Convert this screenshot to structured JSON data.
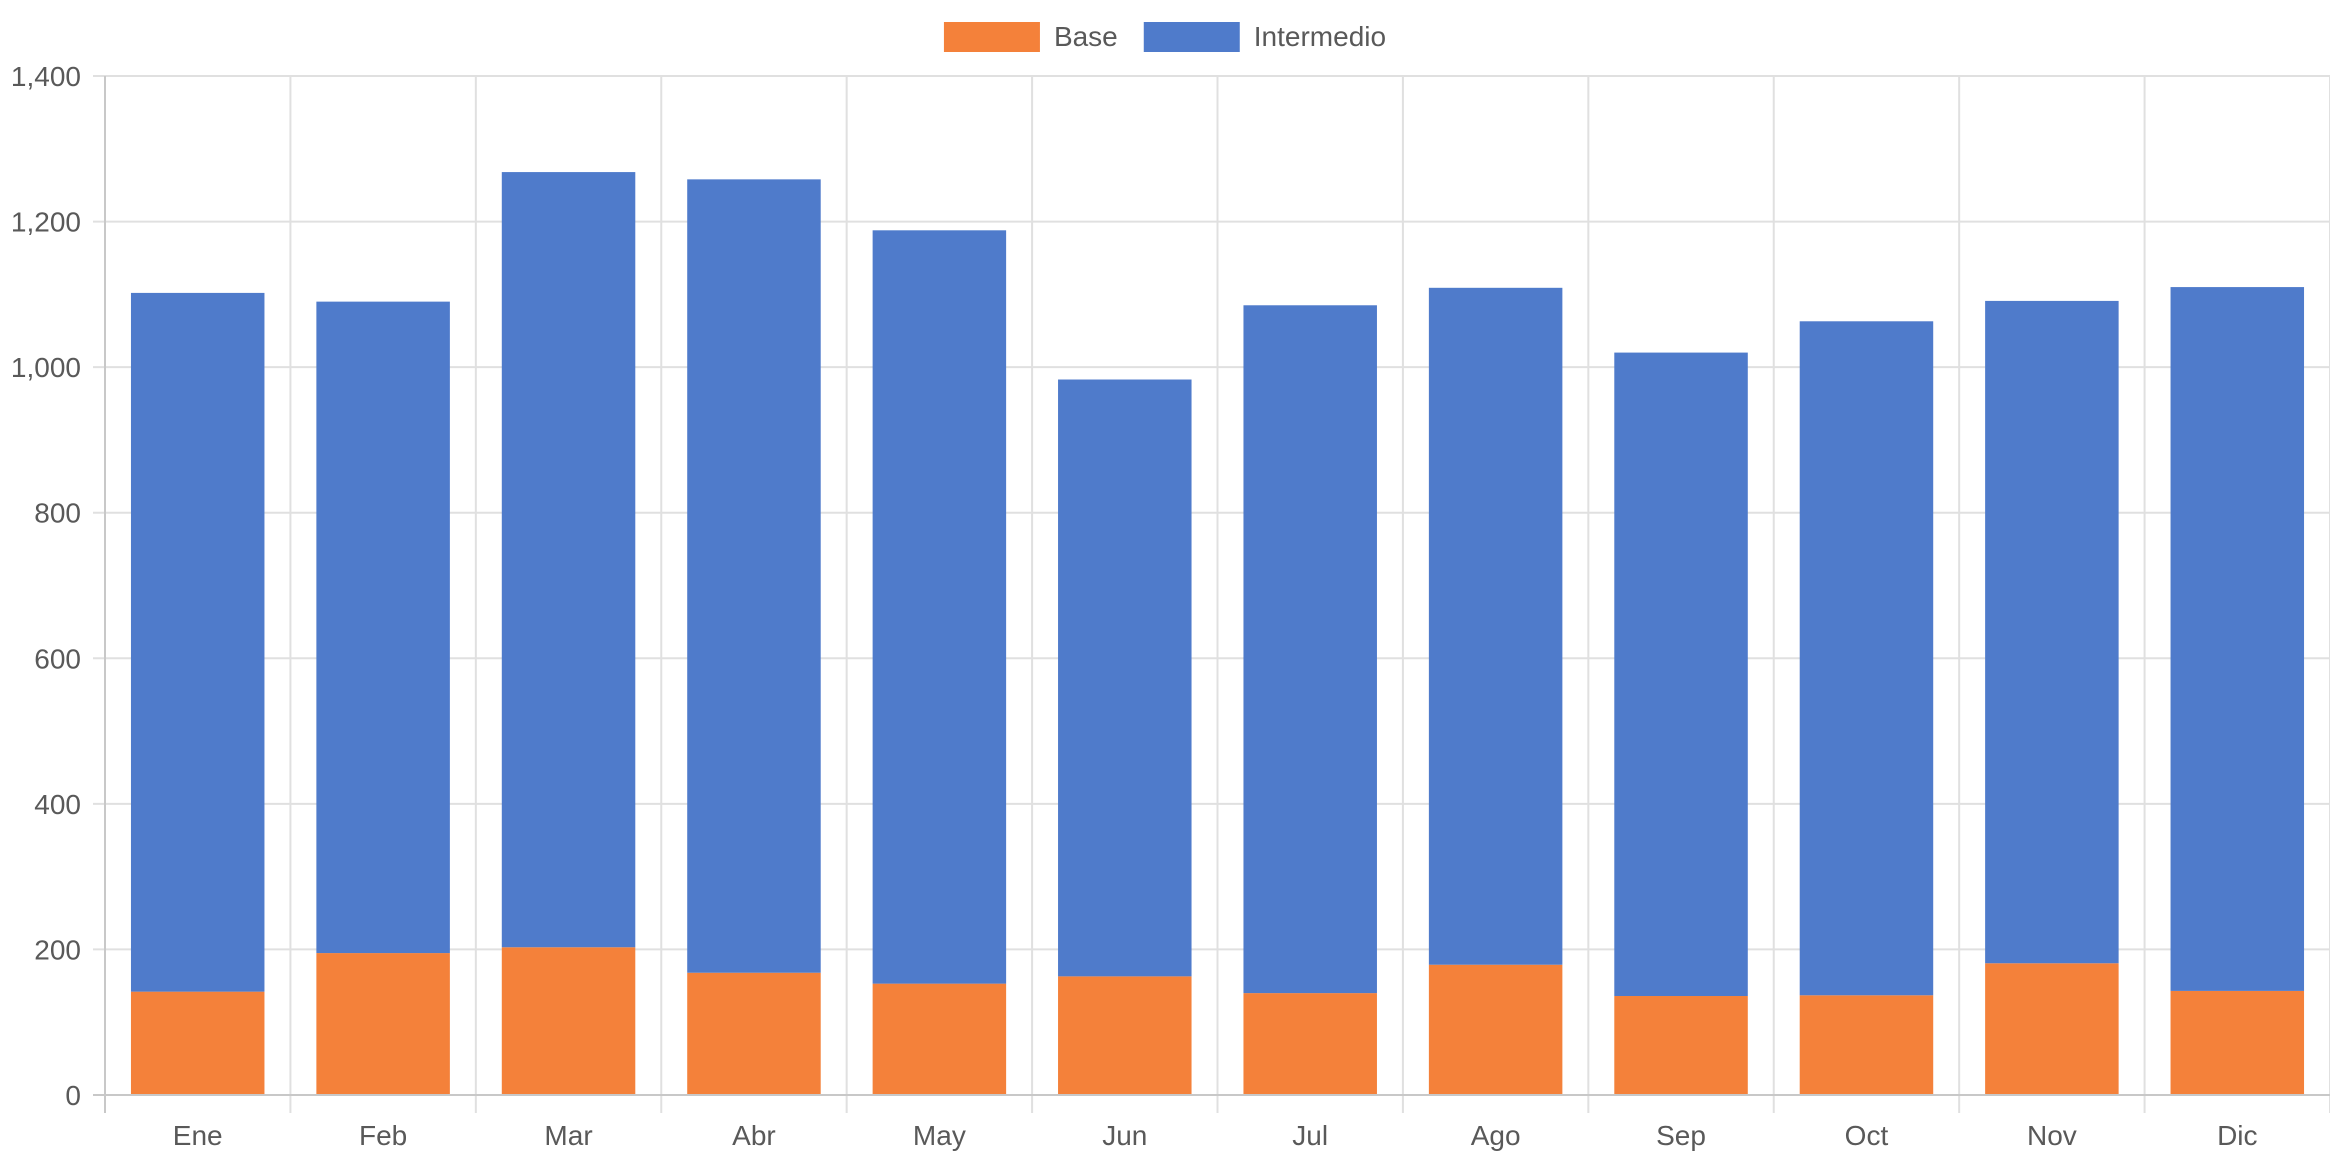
{
  "colors": {
    "Base": "#f4813a",
    "Intermedio": "#4f7bcb",
    "grid": "#e0e0e0",
    "axis": "#c8c8c8",
    "text": "#595959"
  },
  "chart_data": {
    "type": "bar",
    "stacked": true,
    "title": "",
    "xlabel": "",
    "ylabel": "",
    "categories": [
      "Ene",
      "Feb",
      "Mar",
      "Abr",
      "May",
      "Jun",
      "Jul",
      "Ago",
      "Sep",
      "Oct",
      "Nov",
      "Dic"
    ],
    "series": [
      {
        "name": "Base",
        "values": [
          142,
          195,
          203,
          168,
          153,
          163,
          140,
          179,
          136,
          137,
          181,
          143
        ]
      },
      {
        "name": "Intermedio",
        "values": [
          960,
          895,
          1065,
          1090,
          1035,
          820,
          945,
          930,
          884,
          926,
          910,
          967
        ]
      }
    ],
    "ylim": [
      0,
      1400
    ],
    "yticks": [
      0,
      200,
      400,
      600,
      800,
      1000,
      1200,
      1400
    ],
    "ytick_labels": [
      "0",
      "200",
      "400",
      "600",
      "800",
      "1,000",
      "1,200",
      "1,400"
    ],
    "grid": true,
    "legend": "top-center"
  }
}
